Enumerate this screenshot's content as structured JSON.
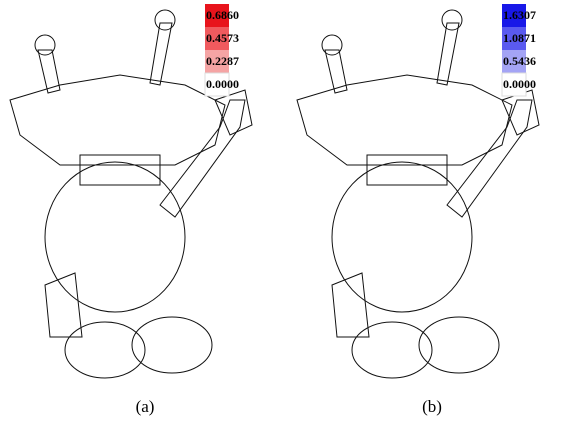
{
  "figures": [
    {
      "caption": "(a)",
      "legend": [
        "0.6860",
        "0.4573",
        "0.2287",
        "0.0000"
      ]
    },
    {
      "caption": "(b)",
      "legend": [
        "1.6307",
        "1.0871",
        "0.5436",
        "0.0000"
      ]
    }
  ]
}
